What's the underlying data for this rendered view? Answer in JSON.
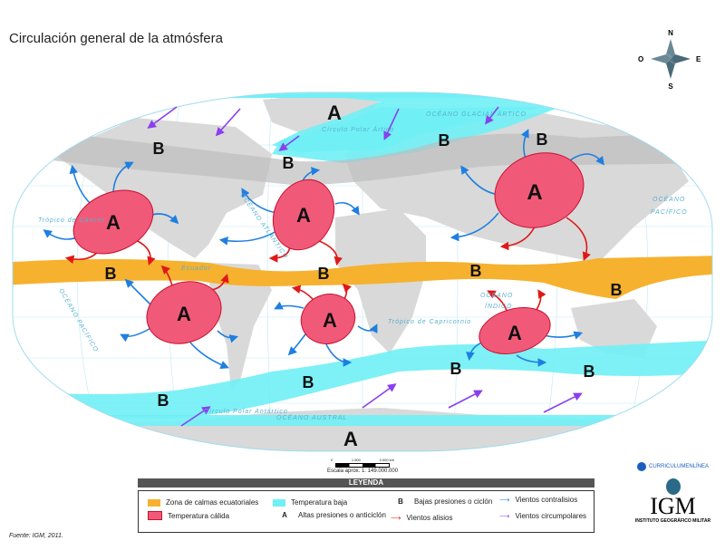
{
  "title": "Circulación general de la atmósfera",
  "compass": {
    "n": "N",
    "s": "S",
    "e": "E",
    "o": "O"
  },
  "map_labels": {
    "arctic": "OCÉANO GLACIAL ÁRTICO",
    "polar_n": "Círculo Polar Ártico",
    "cancer": "Trópico de Cáncer",
    "pacific_r1": "OCÉANO",
    "pacific_r2": "PACÍFICO",
    "atlantic": "OCÉANO ATLÁNTICO",
    "ecuador": "Ecuador",
    "pacific_l": "OCÉANO PACÍFICO",
    "indico1": "OCÉANO",
    "indico2": "ÍNDICO",
    "capricornio": "Trópico de Capricornio",
    "polar_s": "Círculo Polar Antártico",
    "austral": "OCÉANO AUSTRAL"
  },
  "highs": [
    "A",
    "A",
    "A",
    "A",
    "A",
    "A",
    "A",
    "A"
  ],
  "lows": [
    "B",
    "B",
    "B",
    "B",
    "B",
    "B",
    "B",
    "B",
    "B",
    "B",
    "B",
    "B"
  ],
  "scale": {
    "ticks": [
      "0",
      "1.500",
      "3.000 km"
    ],
    "text": "Escala aprox. 1: 149.000.000"
  },
  "legend": {
    "header": "LEYENDA",
    "items": {
      "ecuatorial": "Zona de calmas ecuatoriales",
      "calida": "Temperatura cálida",
      "baja": "Temperatura baja",
      "b_sym": "B",
      "b": "Bajas presiones o ciclón",
      "a_sym": "A",
      "a": "Altas presiones o anticiclón",
      "alisios": "Vientos alisios",
      "contralisios": "Vientos contralisios",
      "circumpolares": "Vientos circumpolares"
    }
  },
  "colors": {
    "orange": "#f6b12e",
    "red": "#f05a78",
    "cyan": "#6ff0f5",
    "land": "#d9d9d9",
    "blue": "#1e7fe0",
    "redarrow": "#e01818",
    "purple": "#8a3ff0"
  },
  "source": "Fuente: IGM, 2011.",
  "logos": {
    "curriculum": "CURRICULUMENLÍNEA",
    "igm": "IGM",
    "igm_sub": "INSTITUTO GEOGRÁFICO MILITAR"
  }
}
